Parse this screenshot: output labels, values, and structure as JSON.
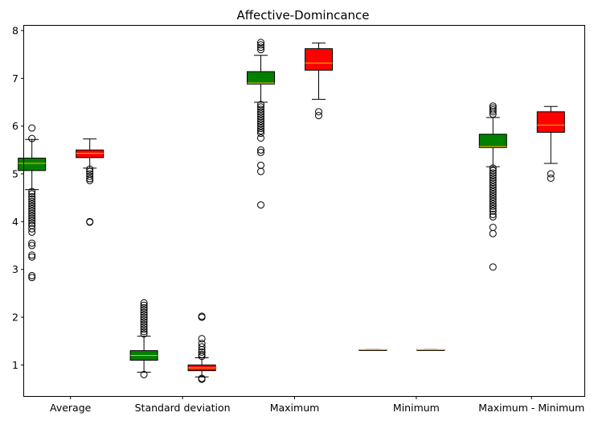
{
  "chart_data": {
    "type": "box",
    "title": "Affective-Domincance",
    "xlabel": "",
    "ylabel": "",
    "ylim": [
      0.35,
      8.1
    ],
    "yticks": [
      1,
      2,
      3,
      4,
      5,
      6,
      7,
      8
    ],
    "categories": [
      "Average",
      "Standard deviation",
      "Maximum",
      "Minimum",
      "Maximum - Minimum"
    ],
    "grid": false,
    "legend": "none",
    "colors": {
      "group_a": "#008000",
      "group_b": "#ff0000",
      "median": "#ffa500",
      "frame": "#000000"
    },
    "groups": [
      {
        "category": "Average",
        "boxes": [
          {
            "series": "green",
            "q1": 5.07,
            "median": 5.22,
            "q3": 5.33,
            "whisker_low": 4.67,
            "whisker_high": 5.72,
            "outliers": [
              5.96,
              5.74,
              4.63,
              4.58,
              4.52,
              4.47,
              4.42,
              4.37,
              4.32,
              4.27,
              4.22,
              4.17,
              4.12,
              4.07,
              4.02,
              3.97,
              3.92,
              3.85,
              3.78,
              3.55,
              3.5,
              3.3,
              3.26,
              2.87,
              2.83
            ]
          },
          {
            "series": "red",
            "q1": 5.34,
            "median": 5.43,
            "q3": 5.5,
            "whisker_low": 5.12,
            "whisker_high": 5.73,
            "outliers": [
              5.1,
              5.05,
              5.0,
              4.95,
              4.9,
              4.86,
              4.0,
              3.99
            ]
          }
        ]
      },
      {
        "category": "Standard deviation",
        "boxes": [
          {
            "series": "green",
            "q1": 1.1,
            "median": 1.2,
            "q3": 1.3,
            "whisker_low": 0.85,
            "whisker_high": 1.6,
            "outliers": [
              2.3,
              2.25,
              2.2,
              2.15,
              2.1,
              2.05,
              2.0,
              1.95,
              1.9,
              1.85,
              1.8,
              1.75,
              1.7,
              1.65,
              0.8
            ]
          },
          {
            "series": "red",
            "q1": 0.88,
            "median": 0.94,
            "q3": 1.0,
            "whisker_low": 0.75,
            "whisker_high": 1.15,
            "outliers": [
              2.02,
              2.0,
              1.55,
              1.45,
              1.38,
              1.32,
              1.27,
              1.22,
              1.18,
              0.72,
              0.7
            ]
          }
        ]
      },
      {
        "category": "Maximum",
        "boxes": [
          {
            "series": "green",
            "q1": 6.88,
            "median": 6.9,
            "q3": 7.14,
            "whisker_low": 6.5,
            "whisker_high": 7.48,
            "outliers": [
              7.75,
              7.7,
              7.65,
              7.6,
              6.45,
              6.4,
              6.35,
              6.3,
              6.25,
              6.2,
              6.15,
              6.1,
              6.05,
              6.0,
              5.95,
              5.9,
              5.85,
              5.75,
              5.5,
              5.45,
              5.18,
              5.05,
              4.35
            ]
          },
          {
            "series": "red",
            "q1": 7.17,
            "median": 7.32,
            "q3": 7.62,
            "whisker_low": 6.56,
            "whisker_high": 7.74,
            "outliers": [
              6.3,
              6.22
            ]
          }
        ]
      },
      {
        "category": "Minimum",
        "boxes": [
          {
            "series": "green",
            "q1": 1.32,
            "median": 1.32,
            "q3": 1.32,
            "whisker_low": 1.32,
            "whisker_high": 1.32,
            "outliers": []
          },
          {
            "series": "red",
            "q1": 1.32,
            "median": 1.32,
            "q3": 1.32,
            "whisker_low": 1.32,
            "whisker_high": 1.32,
            "outliers": []
          }
        ]
      },
      {
        "category": "Maximum - Minimum",
        "boxes": [
          {
            "series": "green",
            "q1": 5.55,
            "median": 5.57,
            "q3": 5.83,
            "whisker_low": 5.15,
            "whisker_high": 6.18,
            "outliers": [
              6.42,
              6.38,
              6.34,
              6.3,
              6.25,
              5.12,
              5.07,
              5.02,
              4.97,
              4.92,
              4.87,
              4.82,
              4.77,
              4.72,
              4.67,
              4.62,
              4.57,
              4.52,
              4.47,
              4.42,
              4.37,
              4.32,
              4.27,
              4.22,
              4.15,
              4.1,
              3.88,
              3.75,
              3.05
            ]
          },
          {
            "series": "red",
            "q1": 5.87,
            "median": 6.02,
            "q3": 6.3,
            "whisker_low": 5.22,
            "whisker_high": 6.41,
            "outliers": [
              5.0,
              4.91
            ]
          }
        ]
      }
    ]
  }
}
